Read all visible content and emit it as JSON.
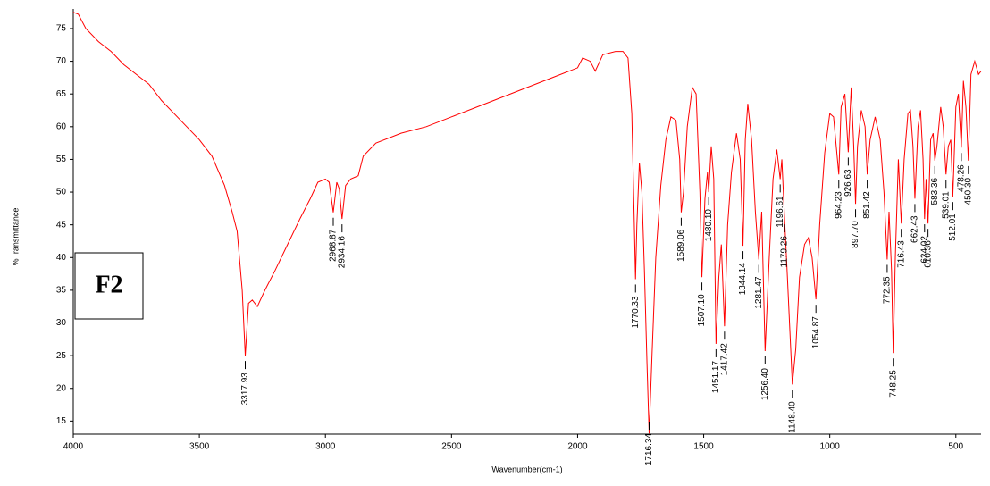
{
  "chart_data": {
    "type": "line",
    "panel_label": "F2",
    "xlabel": "Wavenumber(cm-1)",
    "ylabel": "%Transmittance",
    "color": "#ff0000",
    "xlim": [
      4000,
      400
    ],
    "ylim": [
      13,
      78
    ],
    "xticks": [
      4000,
      3500,
      3000,
      2500,
      2000,
      1500,
      1000,
      500
    ],
    "yticks": [
      15,
      20,
      25,
      30,
      35,
      40,
      45,
      50,
      55,
      60,
      65,
      70,
      75
    ],
    "grid": false,
    "x": [
      4000,
      3980,
      3950,
      3900,
      3850,
      3800,
      3750,
      3700,
      3650,
      3600,
      3550,
      3500,
      3450,
      3400,
      3370,
      3350,
      3330,
      3317.93,
      3305,
      3290,
      3270,
      3240,
      3200,
      3150,
      3100,
      3060,
      3030,
      3000,
      2985,
      2968.87,
      2955,
      2945,
      2934.16,
      2920,
      2900,
      2870,
      2850,
      2800,
      2700,
      2600,
      2500,
      2400,
      2300,
      2200,
      2100,
      2000,
      1980,
      1950,
      1930,
      1900,
      1850,
      1820,
      1800,
      1785,
      1775,
      1770.33,
      1765,
      1755,
      1745,
      1735,
      1725,
      1716.34,
      1705,
      1690,
      1670,
      1650,
      1630,
      1610,
      1595,
      1589.06,
      1580,
      1565,
      1545,
      1530,
      1515,
      1507.1,
      1495,
      1485,
      1480.1,
      1470,
      1460,
      1451.17,
      1440,
      1430,
      1417.42,
      1405,
      1390,
      1370,
      1355,
      1344.14,
      1335,
      1325,
      1310,
      1295,
      1281.47,
      1270,
      1256.4,
      1240,
      1225,
      1210,
      1196.61,
      1190,
      1179.26,
      1168,
      1148.4,
      1135,
      1120,
      1100,
      1085,
      1070,
      1054.87,
      1040,
      1020,
      1000,
      985,
      964.23,
      955,
      940,
      926.63,
      915,
      905,
      897.7,
      890,
      875,
      860,
      851.42,
      840,
      820,
      800,
      785,
      772.35,
      765,
      755,
      748.25,
      740,
      728,
      716.43,
      705,
      690,
      680,
      670,
      662.43,
      650,
      640,
      630,
      624.02,
      618,
      610.36,
      600,
      590,
      583.36,
      575,
      560,
      550,
      539.01,
      530,
      520,
      512.01,
      500,
      490,
      478.26,
      470,
      460,
      450.3,
      440,
      425,
      410,
      400
    ],
    "values": [
      77.5,
      77.2,
      75,
      73,
      71.5,
      69.5,
      68,
      66.5,
      64,
      62,
      60,
      58,
      55.5,
      51,
      47,
      44,
      35,
      25.0,
      33,
      33.5,
      32.5,
      35,
      38,
      42,
      46,
      49,
      51.5,
      52,
      51.5,
      46.9,
      51.5,
      50.5,
      45.9,
      51,
      52,
      52.5,
      55.5,
      57.5,
      59,
      60,
      61.5,
      63,
      64.5,
      66,
      67.5,
      69,
      70.5,
      70,
      68.5,
      71,
      71.5,
      71.5,
      70.5,
      62,
      45,
      36.7,
      45,
      54.5,
      50,
      38,
      24,
      13.1,
      25,
      40,
      51,
      58,
      61.5,
      61,
      55,
      46.9,
      50,
      60,
      66,
      65,
      50,
      37.0,
      49,
      53,
      50.0,
      57,
      52,
      26.8,
      37,
      42,
      29.5,
      45,
      53,
      59,
      55,
      41.8,
      58,
      63.5,
      58,
      47,
      39.7,
      47,
      25.7,
      40,
      52,
      56.5,
      52.0,
      55,
      45.9,
      37,
      20.6,
      26,
      37,
      42,
      43,
      40,
      33.6,
      45,
      56,
      62,
      61.5,
      52.7,
      63,
      65,
      56.1,
      66,
      57,
      48.2,
      57,
      62.5,
      60,
      52.7,
      58,
      61.5,
      58,
      50,
      39.7,
      47,
      38,
      25.4,
      40,
      55,
      45.2,
      55,
      62,
      62.5,
      57,
      49.0,
      60,
      62.5,
      55,
      45.9,
      52,
      45.2,
      58,
      59,
      54.8,
      57,
      63,
      60,
      52.7,
      57,
      58,
      49.3,
      63,
      65,
      56.8,
      67,
      63,
      54.8,
      68,
      70,
      68,
      68.5
    ],
    "peaks": {
      "x": [
        3317.93,
        2968.87,
        2934.16,
        1770.33,
        1716.34,
        1589.06,
        {
          "value": 1507.1,
          "label": "1507.10"
        },
        {
          "value": 1480.1,
          "label": "1480.10"
        },
        1451.17,
        1417.42,
        1344.14,
        1281.47,
        {
          "value": 1256.4,
          "label": "1256.40"
        },
        1196.61,
        1179.26,
        {
          "value": 1148.4,
          "label": "1148.40"
        },
        1054.87,
        964.23,
        926.63,
        {
          "value": 897.7,
          "label": "897.70"
        },
        851.42,
        772.35,
        748.25,
        716.43,
        662.43,
        624.02,
        610.36,
        583.36,
        539.01,
        512.01,
        478.26,
        {
          "value": 450.3,
          "label": "450.30"
        }
      ],
      "values": [
        25.0,
        46.9,
        45.9,
        36.7,
        13.1,
        46.9,
        37.0,
        50.0,
        26.8,
        29.5,
        41.8,
        39.7,
        25.7,
        52.0,
        45.9,
        20.6,
        33.6,
        52.7,
        56.1,
        48.2,
        52.7,
        39.7,
        25.4,
        45.2,
        49.0,
        45.9,
        45.2,
        54.8,
        52.7,
        49.3,
        56.8,
        54.8
      ]
    }
  }
}
